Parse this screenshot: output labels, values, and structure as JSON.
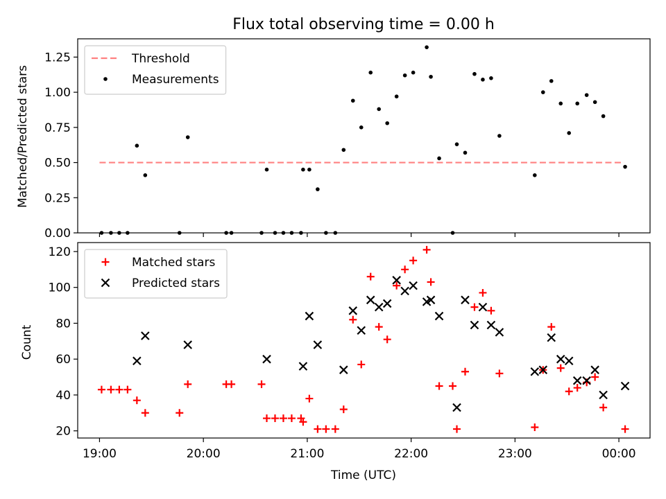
{
  "chart_data": [
    {
      "type": "scatter",
      "title": "Flux total observing time = 0.00 h",
      "xlabel": "",
      "ylabel": "Matched/Predicted stars",
      "xlim": [
        18.79,
        24.3
      ],
      "ylim": [
        0,
        1.38
      ],
      "yticks": [
        0.0,
        0.25,
        0.5,
        0.75,
        1.0,
        1.25
      ],
      "ytick_labels": [
        "0.00",
        "0.25",
        "0.50",
        "0.75",
        "1.00",
        "1.25"
      ],
      "xticks": [
        19,
        20,
        21,
        22,
        23,
        24
      ],
      "legend_position": "top-left",
      "threshold": {
        "name": "Threshold",
        "value": 0.5,
        "x_range": [
          19.0,
          24.05
        ],
        "color": "#ff8080"
      },
      "series": [
        {
          "name": "Measurements",
          "color": "#000000",
          "marker": "dot",
          "x": [
            19.02,
            19.11,
            19.19,
            19.27,
            19.36,
            19.44,
            19.77,
            19.85,
            20.22,
            20.27,
            20.56,
            20.61,
            20.69,
            20.77,
            20.85,
            20.94,
            20.96,
            21.02,
            21.1,
            21.18,
            21.27,
            21.35,
            21.44,
            21.52,
            21.61,
            21.69,
            21.77,
            21.86,
            21.94,
            22.02,
            22.15,
            22.19,
            22.27,
            22.4,
            22.44,
            22.52,
            22.61,
            22.69,
            22.77,
            22.85,
            23.19,
            23.27,
            23.35,
            23.44,
            23.52,
            23.6,
            23.69,
            23.77,
            23.85,
            24.06
          ],
          "values": [
            0,
            0,
            0,
            0,
            0.62,
            0.41,
            0,
            0.68,
            0,
            0,
            0,
            0.45,
            0,
            0,
            0,
            0,
            0.45,
            0.45,
            0.31,
            0,
            0,
            0.59,
            0.94,
            0.75,
            1.14,
            0.88,
            0.78,
            0.97,
            1.12,
            1.14,
            1.32,
            1.11,
            0.53,
            0,
            0.63,
            0.57,
            1.13,
            1.09,
            1.1,
            0.69,
            0.41,
            1.0,
            1.08,
            0.92,
            0.71,
            0.92,
            0.98,
            0.93,
            0.83,
            0.47
          ]
        }
      ]
    },
    {
      "type": "scatter",
      "title": "",
      "xlabel": "Time (UTC)",
      "ylabel": "Count",
      "xlim": [
        18.79,
        24.3
      ],
      "ylim": [
        16,
        125
      ],
      "yticks": [
        20,
        40,
        60,
        80,
        100,
        120
      ],
      "ytick_labels": [
        "20",
        "40",
        "60",
        "80",
        "100",
        "120"
      ],
      "xticks": [
        19,
        20,
        21,
        22,
        23,
        24
      ],
      "xtick_labels": [
        "19:00",
        "20:00",
        "21:00",
        "22:00",
        "23:00",
        "00:00"
      ],
      "legend_position": "top-left",
      "series": [
        {
          "name": "Matched stars",
          "color": "#ff0000",
          "marker": "plus",
          "x": [
            19.02,
            19.11,
            19.19,
            19.27,
            19.36,
            19.44,
            19.77,
            19.85,
            20.22,
            20.27,
            20.56,
            20.61,
            20.69,
            20.77,
            20.85,
            20.94,
            20.96,
            21.02,
            21.1,
            21.18,
            21.27,
            21.35,
            21.44,
            21.52,
            21.61,
            21.69,
            21.77,
            21.86,
            21.94,
            22.02,
            22.15,
            22.19,
            22.27,
            22.4,
            22.44,
            22.52,
            22.61,
            22.69,
            22.77,
            22.85,
            23.19,
            23.27,
            23.35,
            23.44,
            23.52,
            23.6,
            23.69,
            23.77,
            23.85,
            24.06
          ],
          "values": [
            43,
            43,
            43,
            43,
            37,
            30,
            30,
            46,
            46,
            46,
            46,
            27,
            27,
            27,
            27,
            27,
            25,
            38,
            21,
            21,
            21,
            32,
            82,
            57,
            106,
            78,
            71,
            101,
            110,
            115,
            121,
            103,
            45,
            45,
            21,
            53,
            89,
            97,
            87,
            52,
            22,
            54,
            78,
            55,
            42,
            44,
            47,
            50,
            33,
            21
          ]
        },
        {
          "name": "Predicted stars",
          "color": "#000000",
          "marker": "x",
          "x": [
            19.36,
            19.44,
            19.85,
            20.61,
            20.96,
            21.02,
            21.1,
            21.35,
            21.44,
            21.52,
            21.61,
            21.69,
            21.77,
            21.86,
            21.94,
            22.02,
            22.15,
            22.19,
            22.27,
            22.44,
            22.52,
            22.61,
            22.69,
            22.77,
            22.85,
            23.19,
            23.27,
            23.35,
            23.44,
            23.52,
            23.6,
            23.69,
            23.77,
            23.85,
            24.06
          ],
          "values": [
            59,
            73,
            68,
            60,
            56,
            84,
            68,
            54,
            87,
            76,
            93,
            89,
            91,
            104,
            98,
            101,
            92,
            93,
            84,
            33,
            93,
            79,
            89,
            79,
            75,
            53,
            54,
            72,
            60,
            59,
            48,
            48,
            54,
            40,
            45
          ]
        }
      ]
    }
  ]
}
